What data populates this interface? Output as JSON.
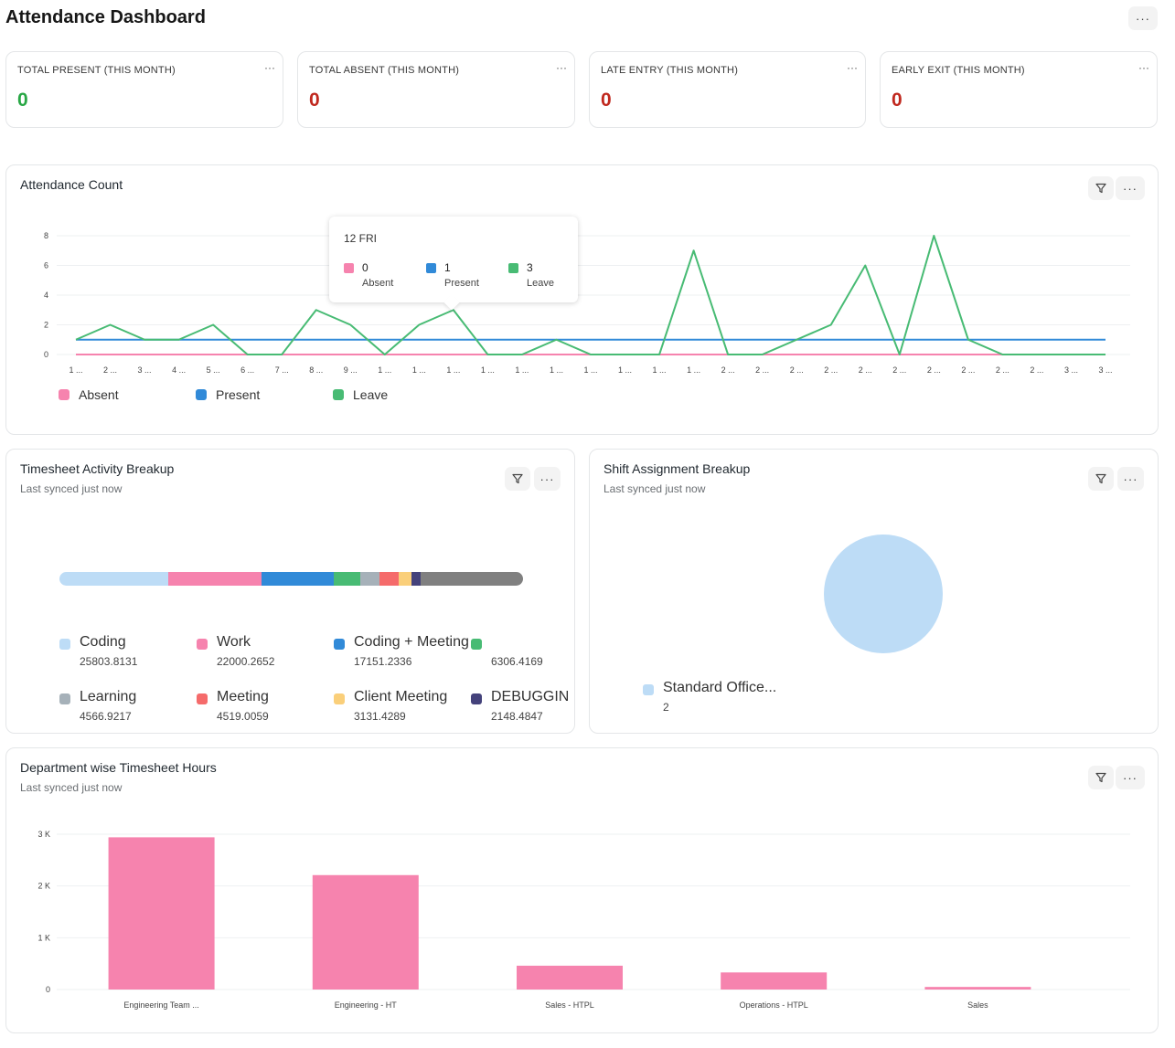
{
  "page": {
    "title": "Attendance Dashboard"
  },
  "number_cards": [
    {
      "label": "TOTAL PRESENT (THIS MONTH)",
      "value": "0",
      "color": "#28a745"
    },
    {
      "label": "TOTAL ABSENT (THIS MONTH)",
      "value": "0",
      "color": "#c0281e"
    },
    {
      "label": "LATE ENTRY (THIS MONTH)",
      "value": "0",
      "color": "#c0281e"
    },
    {
      "label": "EARLY EXIT (THIS MONTH)",
      "value": "0",
      "color": "#c0281e"
    }
  ],
  "menu_label": "···",
  "attendance": {
    "title": "Attendance Count",
    "tooltip": {
      "title": "12 FRI",
      "items": [
        {
          "value": "0",
          "name": "Absent"
        },
        {
          "value": "1",
          "name": "Present"
        },
        {
          "value": "3",
          "name": "Leave"
        }
      ]
    },
    "legend": [
      "Absent",
      "Present",
      "Leave"
    ]
  },
  "timesheet": {
    "title": "Timesheet Activity Breakup",
    "subtitle": "Last synced just now",
    "items": [
      {
        "name": "Coding",
        "value": "25803.8131",
        "color": "#bddcf6"
      },
      {
        "name": "Work",
        "value": "22000.2652",
        "color": "#f683ae"
      },
      {
        "name": "Coding + Meeting",
        "value": "17151.2336",
        "color": "#318ad8"
      },
      {
        "name": "",
        "value": "6306.4169",
        "color": "#48bb74"
      },
      {
        "name": "Learning",
        "value": "4566.9217",
        "color": "#a6b1b9"
      },
      {
        "name": "Meeting",
        "value": "4519.0059",
        "color": "#f56b6b"
      },
      {
        "name": "Client Meeting",
        "value": "3131.4289",
        "color": "#facf7a"
      },
      {
        "name": "DEBUGGING",
        "value": "2148.4847",
        "color": "#44427b"
      }
    ],
    "other_color": "#808080"
  },
  "shift": {
    "title": "Shift Assignment Breakup",
    "subtitle": "Last synced just now",
    "items": [
      {
        "name": "Standard Office...",
        "value": "2",
        "color": "#bddcf6"
      }
    ]
  },
  "department": {
    "title": "Department wise Timesheet Hours",
    "subtitle": "Last synced just now"
  },
  "colors": {
    "absent": "#f683ae",
    "present": "#318ad8",
    "leave": "#48bb74",
    "bar": "#f683ae"
  },
  "chart_data": [
    {
      "type": "line",
      "title": "Attendance Count",
      "x": [
        "1 ...",
        "2 ...",
        "3 ...",
        "4 ...",
        "5 ...",
        "6 ...",
        "7 ...",
        "8 ...",
        "9 ...",
        "1 ...",
        "1 ...",
        "1 ...",
        "1 ...",
        "1 ...",
        "1 ...",
        "1 ...",
        "1 ...",
        "1 ...",
        "1 ...",
        "2 ...",
        "2 ...",
        "2 ...",
        "2 ...",
        "2 ...",
        "2 ...",
        "2 ...",
        "2 ...",
        "2 ...",
        "2 ...",
        "3 ...",
        "3 ..."
      ],
      "yticks": [
        0,
        2,
        4,
        6,
        8
      ],
      "ylim": [
        0,
        8
      ],
      "series": [
        {
          "name": "Absent",
          "values": [
            0,
            0,
            0,
            0,
            0,
            0,
            0,
            0,
            0,
            0,
            0,
            0,
            0,
            0,
            0,
            0,
            0,
            0,
            0,
            0,
            0,
            0,
            0,
            0,
            0,
            0,
            0,
            0,
            0,
            0,
            0
          ]
        },
        {
          "name": "Present",
          "values": [
            1,
            1,
            1,
            1,
            1,
            1,
            1,
            1,
            1,
            1,
            1,
            1,
            1,
            1,
            1,
            1,
            1,
            1,
            1,
            1,
            1,
            1,
            1,
            1,
            1,
            1,
            1,
            1,
            1,
            1,
            1
          ]
        },
        {
          "name": "Leave",
          "values": [
            1,
            2,
            1,
            1,
            2,
            0,
            0,
            3,
            2,
            0,
            2,
            3,
            0,
            0,
            1,
            0,
            0,
            0,
            7,
            0,
            0,
            1,
            2,
            6,
            0,
            8,
            1,
            0,
            0,
            0,
            0
          ]
        }
      ],
      "legend": "bottom-left",
      "grid": true
    },
    {
      "type": "bar",
      "title": "Department wise Timesheet Hours",
      "categories": [
        "Engineering Team ...",
        "Engineering - HT",
        "Sales - HTPL",
        "Operations - HTPL",
        "Sales"
      ],
      "values": [
        2940,
        2210,
        460,
        330,
        50
      ],
      "yticks": [
        "0",
        "1 K",
        "2 K",
        "3 K"
      ],
      "ylim": [
        0,
        3000
      ],
      "grid": true
    }
  ]
}
